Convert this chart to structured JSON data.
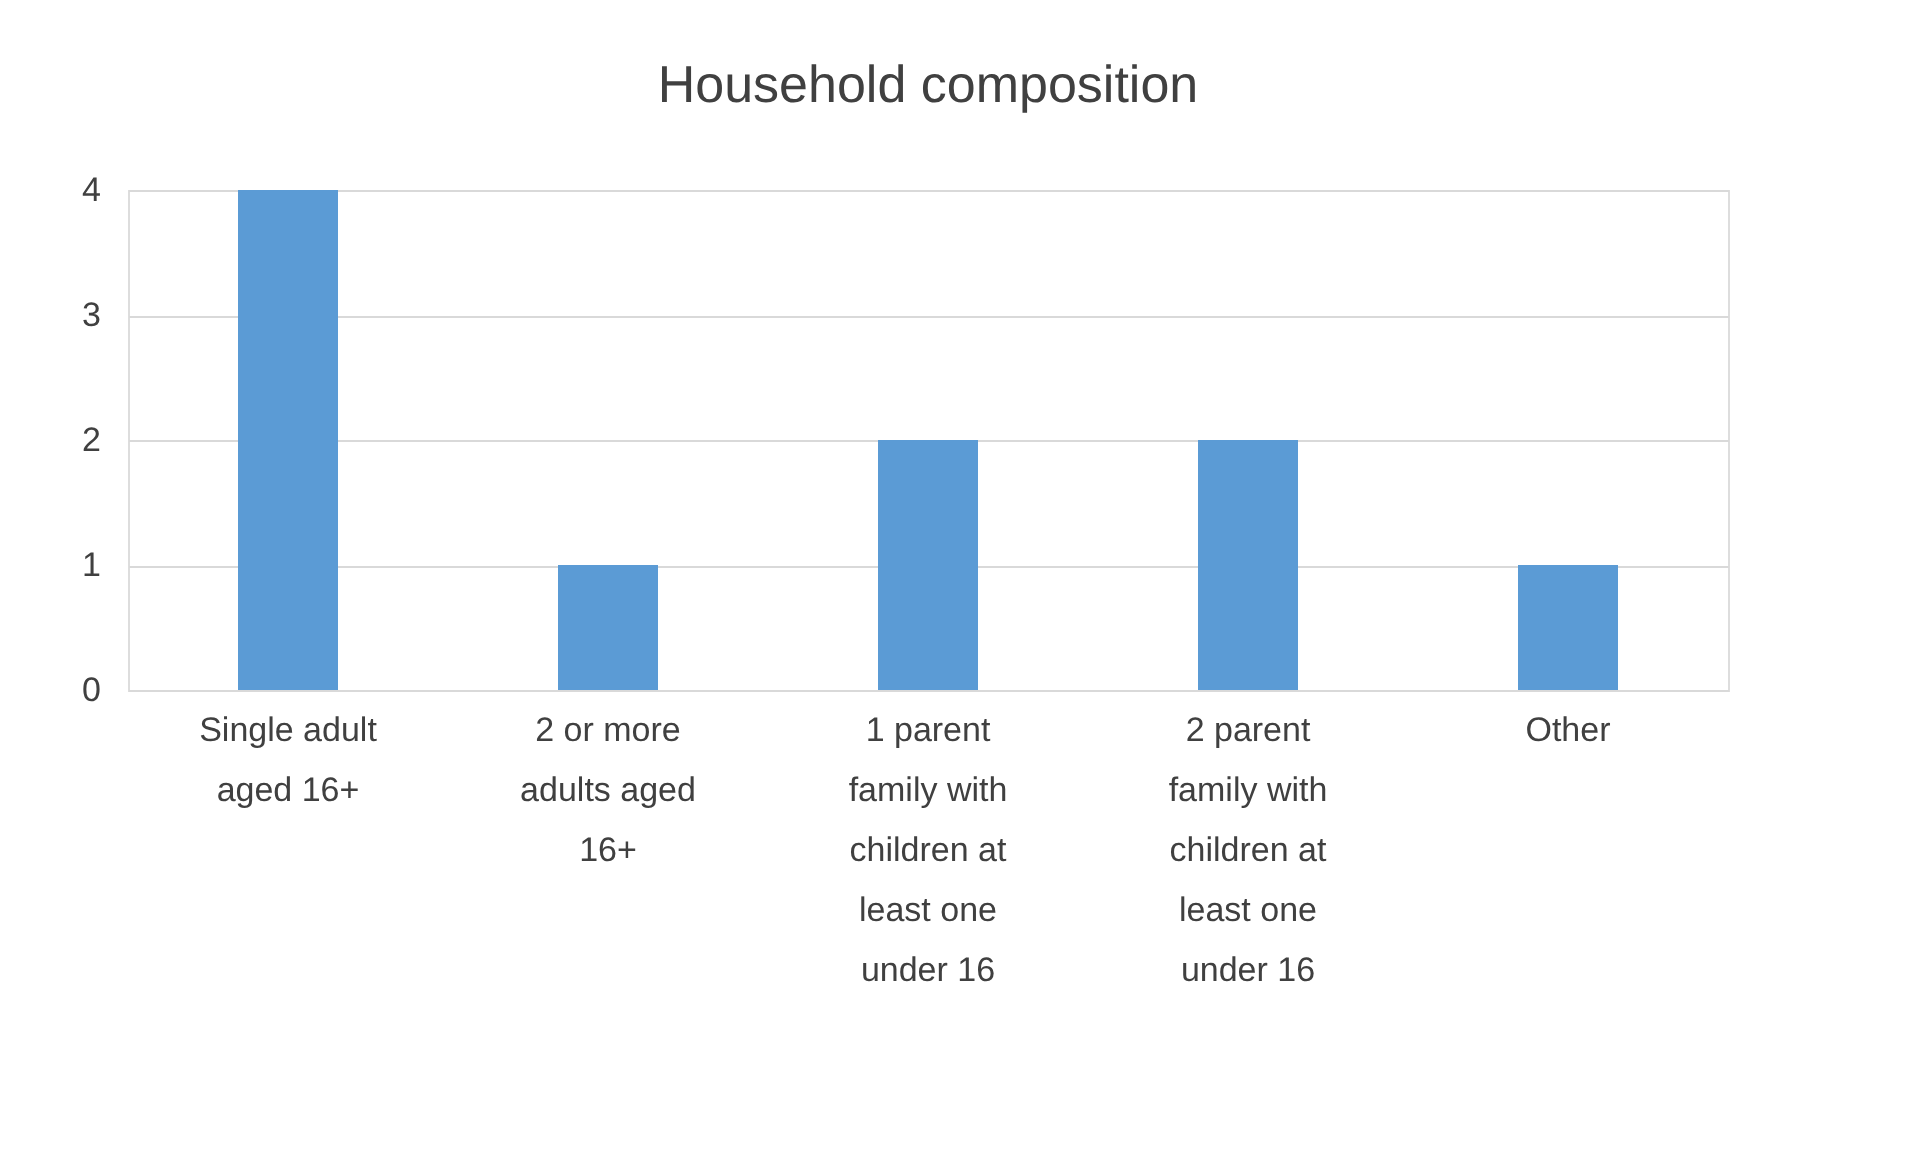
{
  "chart_data": {
    "type": "bar",
    "title": "Household composition",
    "categories": [
      "Single adult aged 16+",
      "2 or more adults aged 16+",
      "1 parent family with children at least one under 16",
      "2 parent family with children at least one under 16",
      "Other"
    ],
    "values": [
      4,
      1,
      2,
      2,
      1
    ],
    "color": "#5b9bd5",
    "ylim": [
      0,
      4
    ],
    "yticks": [
      0,
      1,
      2,
      3,
      4
    ],
    "grid": "y"
  }
}
